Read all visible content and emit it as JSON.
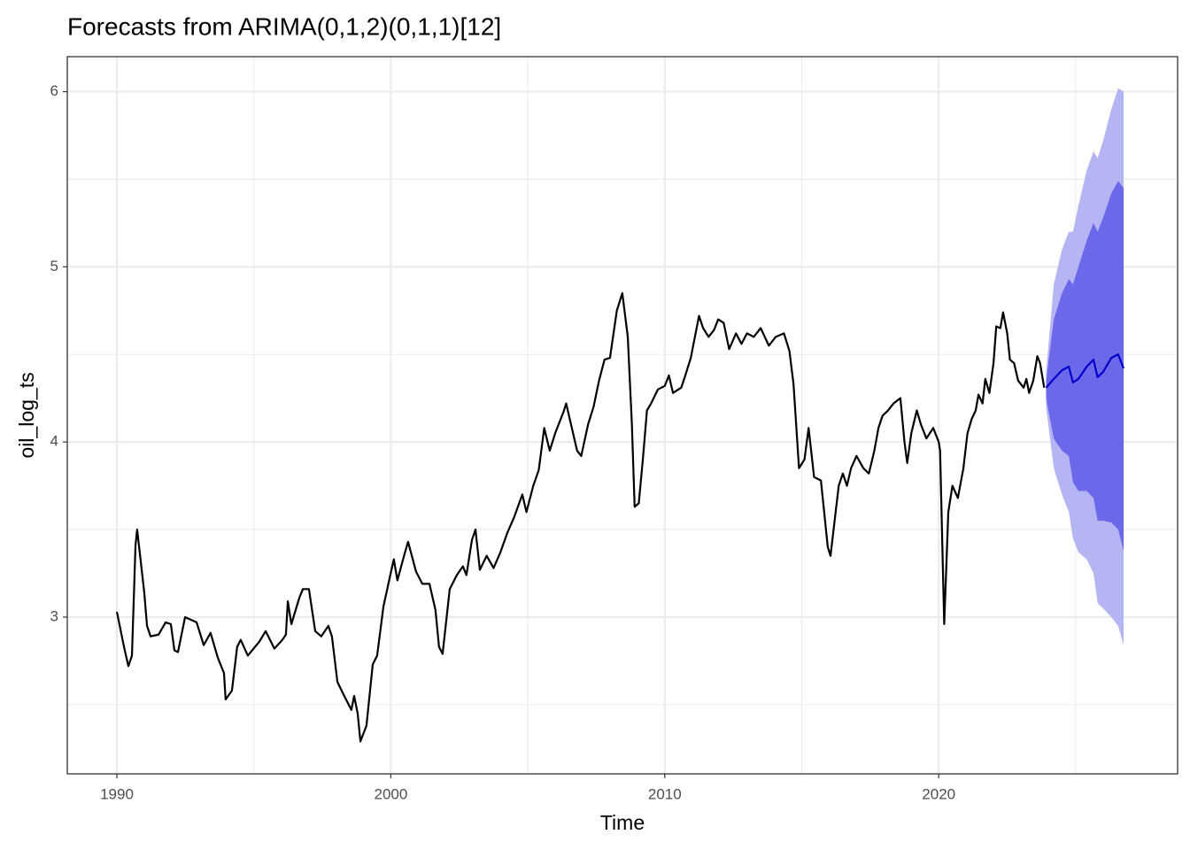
{
  "chart_data": {
    "type": "line",
    "title": "Forecasts from ARIMA(0,1,2)(0,1,1)[12]",
    "x_label": "Time",
    "y_label": "oil_log_ts",
    "xlim": [
      1988.19,
      2028.72
    ],
    "ylim": [
      2.105,
      6.2
    ],
    "xticks": [
      1990,
      2000,
      2010,
      2020
    ],
    "yticks": [
      3,
      4,
      5,
      6
    ],
    "grid": true,
    "series": [
      {
        "color": "#000000",
        "x": [
          1990.0,
          1990.26,
          1990.42,
          1990.55,
          1990.68,
          1990.74,
          1991.0,
          1991.1,
          1991.23,
          1991.52,
          1991.78,
          1991.97,
          1992.1,
          1992.23,
          1992.49,
          1992.91,
          1993.17,
          1993.42,
          1993.68,
          1993.91,
          1993.97,
          1994.2,
          1994.39,
          1994.52,
          1994.78,
          1995.2,
          1995.43,
          1995.75,
          1996.04,
          1996.17,
          1996.24,
          1996.37,
          1996.66,
          1996.79,
          1997.01,
          1997.24,
          1997.46,
          1997.72,
          1997.85,
          1998.05,
          1998.3,
          1998.56,
          1998.66,
          1998.79,
          1998.89,
          1999.11,
          1999.34,
          1999.5,
          1999.73,
          1999.98,
          2000.11,
          2000.24,
          2000.5,
          2000.63,
          2000.92,
          2001.15,
          2001.41,
          2001.63,
          2001.76,
          2001.89,
          2002.15,
          2002.41,
          2002.63,
          2002.76,
          2002.96,
          2003.09,
          2003.25,
          2003.5,
          2003.75,
          2004.0,
          2004.25,
          2004.5,
          2004.8,
          2004.95,
          2005.2,
          2005.4,
          2005.6,
          2005.8,
          2006.0,
          2006.3,
          2006.4,
          2006.8,
          2006.95,
          2007.2,
          2007.4,
          2007.6,
          2007.8,
          2008.0,
          2008.25,
          2008.45,
          2008.65,
          2008.8,
          2008.9,
          2009.05,
          2009.2,
          2009.35,
          2009.5,
          2009.75,
          2010.0,
          2010.15,
          2010.3,
          2010.6,
          2010.75,
          2010.95,
          2011.1,
          2011.25,
          2011.4,
          2011.6,
          2011.8,
          2011.95,
          2012.15,
          2012.35,
          2012.6,
          2012.8,
          2013.0,
          2013.25,
          2013.5,
          2013.8,
          2014.05,
          2014.35,
          2014.55,
          2014.7,
          2014.9,
          2015.1,
          2015.25,
          2015.45,
          2015.7,
          2015.95,
          2016.05,
          2016.2,
          2016.35,
          2016.5,
          2016.65,
          2016.8,
          2017.0,
          2017.25,
          2017.45,
          2017.65,
          2017.8,
          2017.95,
          2018.15,
          2018.35,
          2018.6,
          2018.75,
          2018.85,
          2019.0,
          2019.2,
          2019.35,
          2019.55,
          2019.8,
          2020.0,
          2020.05,
          2020.2,
          2020.35,
          2020.5,
          2020.7,
          2020.9,
          2021.05,
          2021.2,
          2021.35,
          2021.45,
          2021.6,
          2021.7,
          2021.85,
          2022.0,
          2022.1,
          2022.25,
          2022.35,
          2022.5,
          2022.6,
          2022.75,
          2022.9,
          2023.1,
          2023.2,
          2023.3,
          2023.45,
          2023.6,
          2023.7,
          2023.85
        ],
        "values": [
          3.03,
          2.83,
          2.72,
          2.78,
          3.41,
          3.5,
          3.14,
          2.95,
          2.89,
          2.9,
          2.97,
          2.96,
          2.81,
          2.8,
          3.0,
          2.97,
          2.84,
          2.91,
          2.77,
          2.68,
          2.53,
          2.58,
          2.83,
          2.87,
          2.78,
          2.86,
          2.92,
          2.82,
          2.87,
          2.9,
          3.09,
          2.96,
          3.11,
          3.16,
          3.16,
          2.92,
          2.89,
          2.95,
          2.89,
          2.63,
          2.55,
          2.47,
          2.55,
          2.45,
          2.29,
          2.38,
          2.73,
          2.78,
          3.06,
          3.24,
          3.33,
          3.21,
          3.36,
          3.43,
          3.26,
          3.19,
          3.19,
          3.04,
          2.83,
          2.79,
          3.16,
          3.24,
          3.29,
          3.24,
          3.44,
          3.5,
          3.27,
          3.35,
          3.28,
          3.37,
          3.48,
          3.57,
          3.7,
          3.6,
          3.75,
          3.84,
          4.08,
          3.95,
          4.05,
          4.17,
          4.22,
          3.95,
          3.92,
          4.1,
          4.2,
          4.35,
          4.47,
          4.48,
          4.75,
          4.85,
          4.6,
          4.1,
          3.63,
          3.65,
          3.9,
          4.18,
          4.22,
          4.3,
          4.32,
          4.38,
          4.28,
          4.31,
          4.38,
          4.48,
          4.6,
          4.72,
          4.65,
          4.6,
          4.64,
          4.7,
          4.68,
          4.53,
          4.62,
          4.56,
          4.62,
          4.6,
          4.65,
          4.55,
          4.6,
          4.62,
          4.52,
          4.33,
          3.85,
          3.9,
          4.08,
          3.8,
          3.78,
          3.4,
          3.35,
          3.55,
          3.75,
          3.82,
          3.75,
          3.85,
          3.92,
          3.85,
          3.82,
          3.95,
          4.08,
          4.15,
          4.18,
          4.22,
          4.25,
          4.0,
          3.88,
          4.05,
          4.18,
          4.1,
          4.02,
          4.08,
          4.0,
          3.95,
          2.96,
          3.6,
          3.75,
          3.68,
          3.85,
          4.05,
          4.13,
          4.18,
          4.27,
          4.22,
          4.36,
          4.28,
          4.45,
          4.66,
          4.65,
          4.74,
          4.62,
          4.47,
          4.45,
          4.35,
          4.31,
          4.36,
          4.28,
          4.35,
          4.49,
          4.45,
          4.31
        ]
      },
      {
        "color": "#0000cc",
        "x": [
          2023.92,
          2024.2,
          2024.5,
          2024.75,
          2024.9,
          2025.1,
          2025.4,
          2025.65,
          2025.8,
          2026.0,
          2026.3,
          2026.55,
          2026.75
        ],
        "values": [
          4.31,
          4.36,
          4.41,
          4.43,
          4.34,
          4.36,
          4.43,
          4.47,
          4.37,
          4.4,
          4.48,
          4.5,
          4.42
        ]
      }
    ],
    "bands": [
      {
        "color": "#b6b5f3",
        "lower": [
          4.2,
          3.85,
          3.7,
          3.6,
          3.45,
          3.37,
          3.33,
          3.25,
          3.08,
          3.05,
          3.0,
          2.95,
          2.84
        ],
        "upper": [
          4.4,
          4.9,
          5.1,
          5.2,
          5.2,
          5.35,
          5.55,
          5.66,
          5.62,
          5.72,
          5.9,
          6.02,
          6.0
        ]
      },
      {
        "color": "#6c68ea",
        "lower": [
          4.25,
          4.02,
          3.95,
          3.92,
          3.77,
          3.72,
          3.72,
          3.68,
          3.55,
          3.55,
          3.54,
          3.5,
          3.38
        ],
        "upper": [
          4.35,
          4.7,
          4.85,
          4.93,
          4.9,
          5.0,
          5.15,
          5.25,
          5.2,
          5.28,
          5.42,
          5.49,
          5.45
        ]
      }
    ]
  }
}
